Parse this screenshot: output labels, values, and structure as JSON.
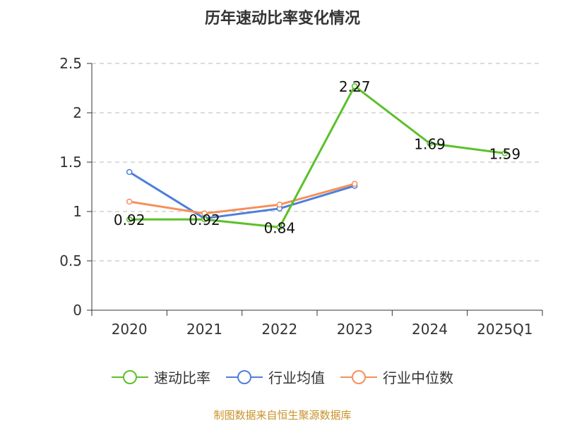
{
  "chart_data": {
    "type": "line",
    "title": "历年速动比率变化情况",
    "categories": [
      "2020",
      "2021",
      "2022",
      "2023",
      "2024",
      "2025Q1"
    ],
    "ylim": [
      0,
      2.5
    ],
    "yticks": [
      "0",
      "0.5",
      "1",
      "1.5",
      "2",
      "2.5"
    ],
    "grid": true,
    "legend_position": "bottom",
    "series": [
      {
        "name": "速动比率",
        "color": "#5cc02a",
        "values": [
          0.92,
          0.92,
          0.84,
          2.27,
          1.69,
          1.59
        ],
        "labels": [
          "0.92",
          "0.92",
          "0.84",
          "2.27",
          "1.69",
          "1.59"
        ]
      },
      {
        "name": "行业均值",
        "color": "#4d7fdb",
        "values": [
          1.4,
          0.93,
          1.03,
          1.26,
          null,
          null
        ]
      },
      {
        "name": "行业中位数",
        "color": "#f5905b",
        "values": [
          1.1,
          0.98,
          1.07,
          1.28,
          null,
          null
        ]
      }
    ]
  },
  "footer": {
    "source": "制图数据来自恒生聚源数据库"
  }
}
